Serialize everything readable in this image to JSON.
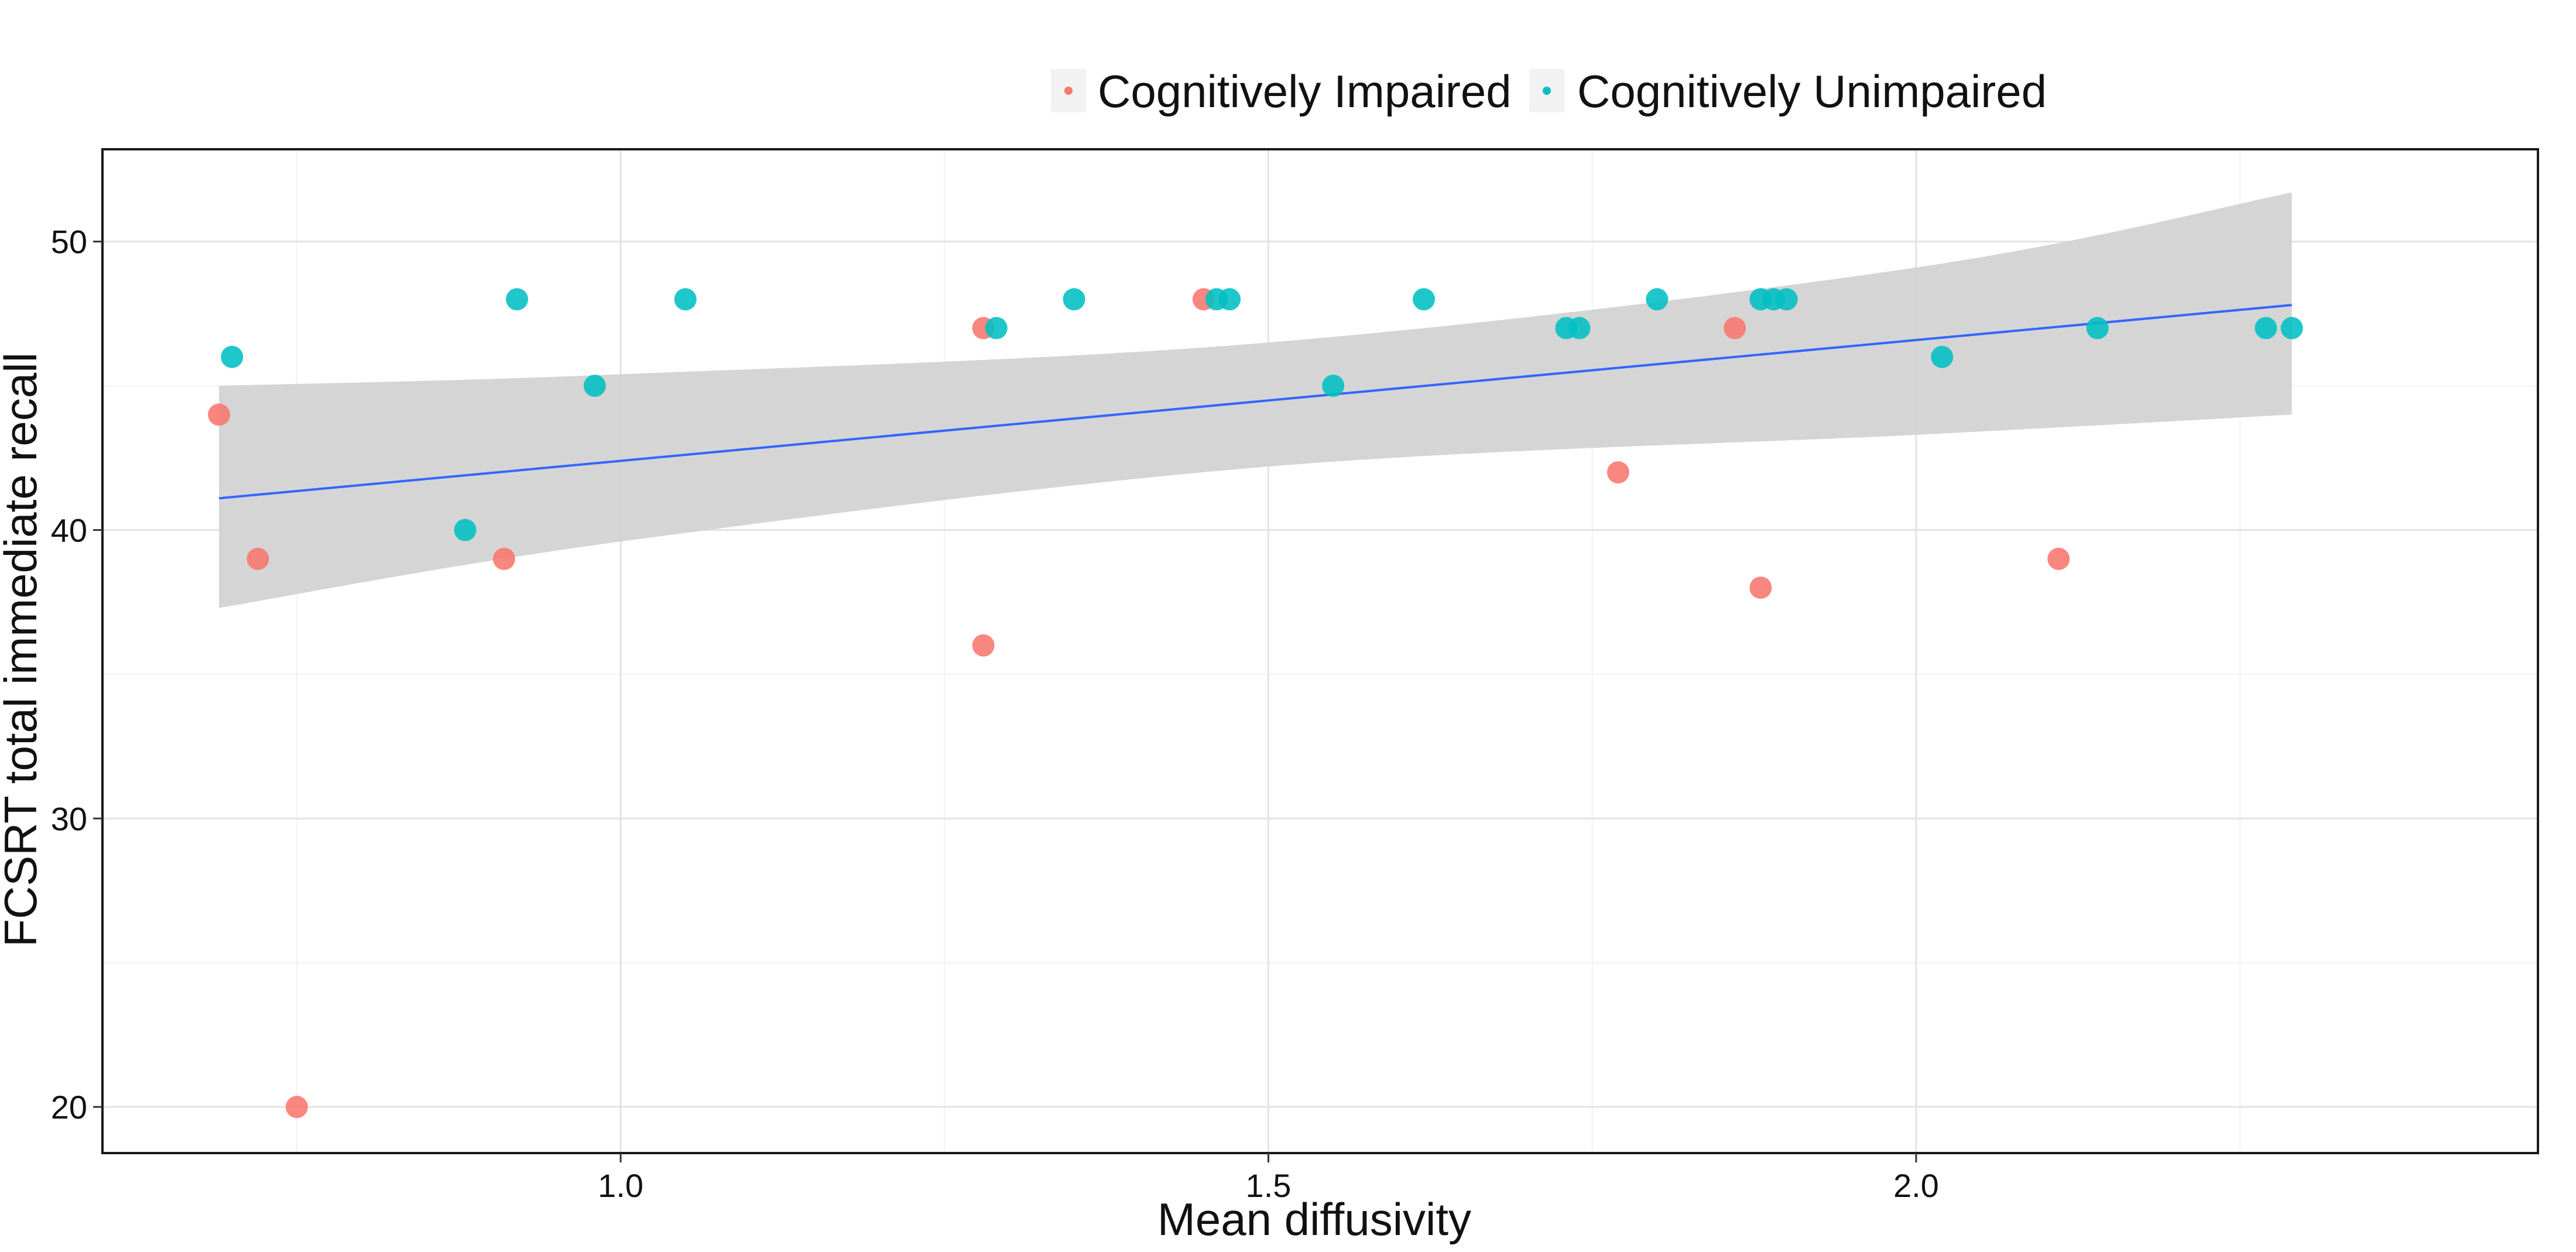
{
  "chart_data": {
    "type": "scatter",
    "title": "",
    "xlabel": "Mean diffusivity",
    "ylabel": "FCSRT total immediate recall",
    "xlim": [
      0.6,
      2.48
    ],
    "ylim": [
      18.4,
      53.2
    ],
    "x_ticks": [
      1.0,
      1.5,
      2.0
    ],
    "x_tick_labels": [
      "1.0",
      "1.5",
      "2.0"
    ],
    "y_ticks": [
      20,
      30,
      40,
      50
    ],
    "y_tick_labels": [
      "20",
      "30",
      "40",
      "50"
    ],
    "grid": true,
    "legend_position": "top",
    "series": [
      {
        "name": "Cognitively Impaired",
        "color": "#F8766D",
        "points": [
          [
            0.69,
            44
          ],
          [
            0.72,
            39
          ],
          [
            0.75,
            20
          ],
          [
            0.91,
            39
          ],
          [
            1.28,
            47
          ],
          [
            1.28,
            36
          ],
          [
            1.45,
            48
          ],
          [
            1.77,
            42
          ],
          [
            1.86,
            47
          ],
          [
            1.88,
            38
          ],
          [
            2.11,
            39
          ]
        ]
      },
      {
        "name": "Cognitively Unimpaired",
        "color": "#00BFC4",
        "points": [
          [
            0.7,
            46
          ],
          [
            0.88,
            40
          ],
          [
            0.92,
            48
          ],
          [
            0.98,
            45
          ],
          [
            1.05,
            48
          ],
          [
            1.29,
            47
          ],
          [
            1.35,
            48
          ],
          [
            1.46,
            48
          ],
          [
            1.47,
            48
          ],
          [
            1.55,
            45
          ],
          [
            1.62,
            48
          ],
          [
            1.73,
            47
          ],
          [
            1.74,
            47
          ],
          [
            1.8,
            48
          ],
          [
            1.88,
            48
          ],
          [
            1.89,
            48
          ],
          [
            1.9,
            48
          ],
          [
            2.02,
            46
          ],
          [
            2.14,
            47
          ],
          [
            2.27,
            47
          ],
          [
            2.29,
            47
          ]
        ]
      }
    ],
    "fit": {
      "type": "linear",
      "color": "#3366FF",
      "x_range": [
        0.69,
        2.29
      ],
      "y_at_start": 41.1,
      "y_at_end": 47.8,
      "ci_lower": [
        37.3,
        39.6,
        42.2,
        43.3,
        44.0
      ],
      "ci_upper": [
        45.0,
        45.4,
        46.5,
        49.1,
        51.7
      ],
      "ci_x": [
        0.69,
        1.0,
        1.5,
        2.0,
        2.29
      ],
      "ci_color": "#D3D3D3"
    }
  }
}
